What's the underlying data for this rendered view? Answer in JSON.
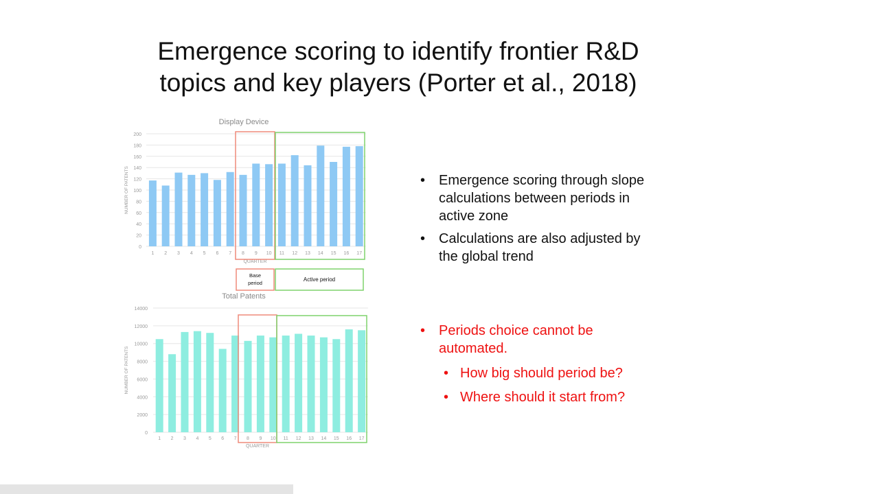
{
  "slide": {
    "title_line1": "Emergence scoring to identify frontier R&D",
    "title_line2": "topics and key players (Porter et al., 2018)"
  },
  "bullets": {
    "b1_lines": [
      "Emergence scoring through slope",
      "calculations between periods in",
      "active zone"
    ],
    "b2_lines": [
      "Calculations are also adjusted by",
      "the global trend"
    ],
    "b3_lines": [
      "Periods choice cannot be",
      "automated."
    ],
    "b4": "How big should period be?",
    "b5": "Where should it start from?",
    "bullet_char": "•"
  },
  "period_labels": {
    "base_line1": "Base",
    "base_line2": "period",
    "active": "Active period"
  },
  "colors": {
    "display_bar": "#8ec9f4",
    "total_bar": "#8eede0",
    "base_box": "#ef8a7a",
    "active_box": "#7fd26c",
    "grid": "#e6e6e6",
    "axis_text": "#9a9a9a",
    "title_text": "#888888",
    "red_text": "#ee1111"
  },
  "chart_data": [
    {
      "type": "bar",
      "title": "Display  Device",
      "xlabel": "QUARTER",
      "ylabel": "NUMBER  OF PATENTS",
      "categories": [
        "1",
        "2",
        "3",
        "4",
        "5",
        "6",
        "7",
        "8",
        "9",
        "10",
        "11",
        "12",
        "13",
        "14",
        "15",
        "16",
        "17"
      ],
      "values": [
        117,
        108,
        131,
        127,
        130,
        118,
        132,
        127,
        147,
        146,
        147,
        162,
        144,
        179,
        150,
        177,
        178
      ],
      "ylim": [
        0,
        200
      ],
      "yticks": [
        0,
        20,
        40,
        60,
        80,
        100,
        120,
        140,
        160,
        180,
        200
      ],
      "grid": true,
      "base_period": [
        8,
        10
      ],
      "active_period": [
        11,
        17
      ]
    },
    {
      "type": "bar",
      "title": "Total  Patents",
      "xlabel": "QUARTER",
      "ylabel": "NUMBER  OF PATENTS",
      "categories": [
        "1",
        "2",
        "3",
        "4",
        "5",
        "6",
        "7",
        "8",
        "9",
        "10",
        "11",
        "12",
        "13",
        "14",
        "15",
        "16",
        "17"
      ],
      "values": [
        10500,
        8800,
        11300,
        11400,
        11200,
        9400,
        10900,
        10300,
        10900,
        10700,
        10900,
        11100,
        10900,
        10700,
        10500,
        11600,
        11500
      ],
      "ylim": [
        0,
        14000
      ],
      "yticks": [
        0,
        2000,
        4000,
        6000,
        8000,
        10000,
        12000,
        14000
      ],
      "grid": true,
      "base_period": [
        8,
        10
      ],
      "active_period": [
        11,
        17
      ]
    }
  ]
}
